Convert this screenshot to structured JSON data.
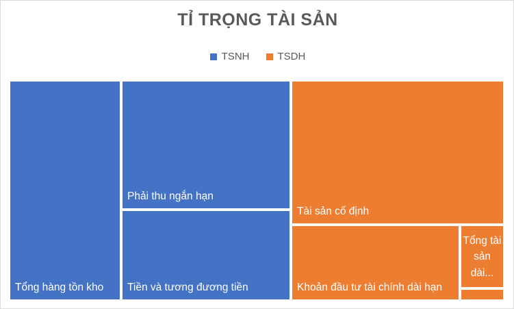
{
  "chart_data": {
    "type": "treemap",
    "title": "TỈ TRỌNG TÀI SẢN",
    "legend_position": "top",
    "series": [
      {
        "name": "TSNH",
        "color": "#4472c4"
      },
      {
        "name": "TSDH",
        "color": "#ed7d31"
      }
    ],
    "items": [
      {
        "label": "Tổng hàng tồn kho",
        "series": "TSNH",
        "value": 158
      },
      {
        "label": "Phải thu ngắn hạn",
        "series": "TSNH",
        "value": 181
      },
      {
        "label": "Tiền và tương đương tiền",
        "series": "TSNH",
        "value": 126
      },
      {
        "label": "Tài sản cố định",
        "series": "TSDH",
        "value": 208
      },
      {
        "label": "Khoản đầu tư tài chính dài hạn",
        "series": "TSDH",
        "value": 118
      },
      {
        "label": "Tổng tài sản dài...",
        "series": "TSDH",
        "value": 31
      },
      {
        "label": "",
        "series": "TSDH",
        "value": 5
      }
    ]
  }
}
